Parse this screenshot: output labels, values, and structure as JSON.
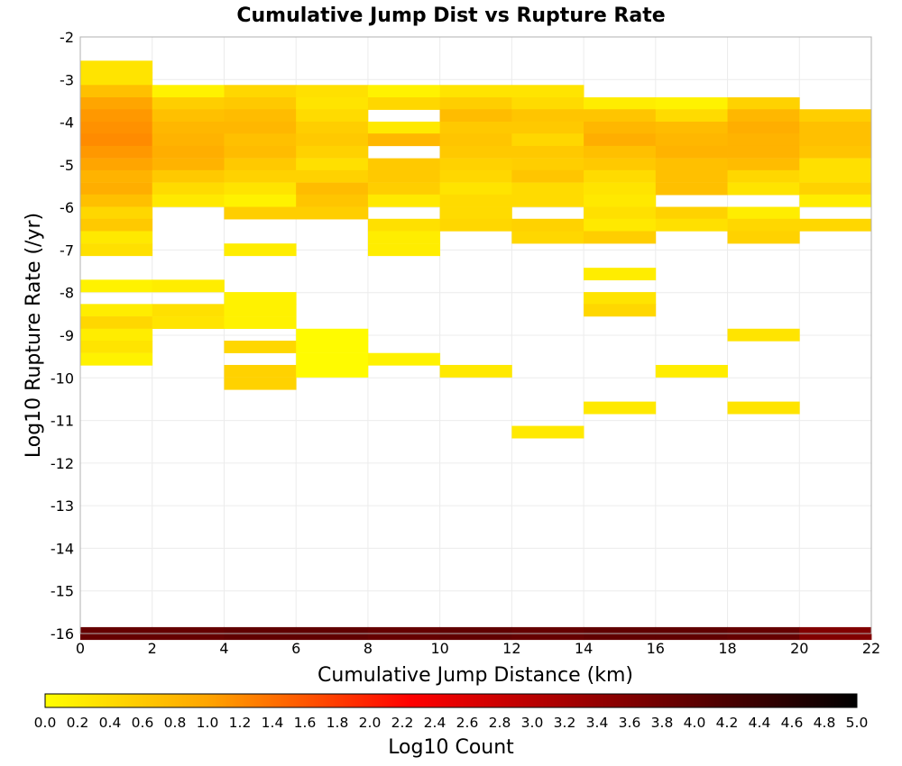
{
  "chart_data": {
    "type": "heatmap",
    "title": "Cumulative Jump Dist vs Rupture Rate",
    "xlabel": "Cumulative Jump Distance (km)",
    "ylabel": "Log10 Rupture Rate (/yr)",
    "xlim": [
      0,
      22
    ],
    "ylim": [
      -16,
      -2
    ],
    "x_ticks": [
      "0",
      "2",
      "4",
      "6",
      "8",
      "10",
      "12",
      "14",
      "16",
      "18",
      "20",
      "22"
    ],
    "y_ticks": [
      "-2",
      "-3",
      "-4",
      "-5",
      "-6",
      "-7",
      "-8",
      "-9",
      "-10",
      "-11",
      "-12",
      "-13",
      "-14",
      "-15",
      "-16"
    ],
    "grid": true,
    "x_bin_width": 2,
    "y_bin_height": 0.286,
    "colorbar": {
      "label": "Log10 Count",
      "range": [
        0.0,
        5.0
      ],
      "ticks": [
        "0.0",
        "0.2",
        "0.4",
        "0.6",
        "0.8",
        "1.0",
        "1.2",
        "1.4",
        "1.6",
        "1.8",
        "2.0",
        "2.2",
        "2.4",
        "2.6",
        "2.8",
        "3.0",
        "3.2",
        "3.4",
        "3.6",
        "3.8",
        "4.0",
        "4.2",
        "4.4",
        "4.6",
        "4.8",
        "5.0"
      ],
      "colors": [
        "#ffff00",
        "#ffa500",
        "#ff0000",
        "#000000"
      ]
    },
    "row_y": [
      -2.7,
      -2.98,
      -3.27,
      -3.56,
      -3.84,
      -4.13,
      -4.41,
      -4.7,
      -4.99,
      -5.27,
      -5.56,
      -5.84,
      -6.13,
      -6.41,
      -6.7,
      -6.99,
      -7.27,
      -7.56,
      -7.84,
      -8.13,
      -8.41,
      -8.7,
      -8.99,
      -9.27,
      -9.56,
      -9.84,
      -10.13,
      -10.41,
      -10.7,
      -10.99,
      -11.27,
      -11.56
    ],
    "columns": [
      {
        "x": 0,
        "cells": [
          [
            0,
            0.3
          ],
          [
            1,
            0.3
          ],
          [
            2,
            0.7
          ],
          [
            3,
            1.0
          ],
          [
            4,
            1.1
          ],
          [
            5,
            1.15
          ],
          [
            6,
            1.2
          ],
          [
            7,
            1.1
          ],
          [
            8,
            1.0
          ],
          [
            9,
            0.85
          ],
          [
            10,
            0.9
          ],
          [
            11,
            0.7
          ],
          [
            12,
            0.45
          ],
          [
            13,
            0.6
          ],
          [
            14,
            0.25
          ],
          [
            15,
            0.35
          ],
          [
            18,
            0.15
          ],
          [
            20,
            0.2
          ],
          [
            21,
            0.45
          ],
          [
            22,
            0.2
          ],
          [
            23,
            0.3
          ],
          [
            24,
            0.15
          ]
        ]
      },
      {
        "x": 2,
        "cells": [
          [
            2,
            0.15
          ],
          [
            3,
            0.55
          ],
          [
            4,
            0.7
          ],
          [
            5,
            0.8
          ],
          [
            6,
            0.85
          ],
          [
            7,
            0.9
          ],
          [
            8,
            0.85
          ],
          [
            9,
            0.6
          ],
          [
            10,
            0.4
          ],
          [
            11,
            0.25
          ],
          [
            18,
            0.2
          ],
          [
            20,
            0.35
          ],
          [
            21,
            0.3
          ]
        ]
      },
      {
        "x": 4,
        "cells": [
          [
            2,
            0.45
          ],
          [
            3,
            0.6
          ],
          [
            4,
            0.75
          ],
          [
            5,
            0.8
          ],
          [
            6,
            0.7
          ],
          [
            7,
            0.75
          ],
          [
            8,
            0.6
          ],
          [
            9,
            0.5
          ],
          [
            10,
            0.3
          ],
          [
            11,
            0.15
          ],
          [
            12,
            0.55
          ],
          [
            15,
            0.2
          ],
          [
            19,
            0.15
          ],
          [
            20,
            0.15
          ],
          [
            21,
            0.15
          ],
          [
            23,
            0.45
          ],
          [
            25,
            0.5
          ],
          [
            26,
            0.5
          ]
        ]
      },
      {
        "x": 6,
        "cells": [
          [
            2,
            0.35
          ],
          [
            3,
            0.3
          ],
          [
            4,
            0.4
          ],
          [
            5,
            0.55
          ],
          [
            6,
            0.6
          ],
          [
            7,
            0.5
          ],
          [
            8,
            0.35
          ],
          [
            9,
            0.5
          ],
          [
            10,
            0.75
          ],
          [
            11,
            0.65
          ],
          [
            12,
            0.55
          ],
          [
            22,
            0.05
          ],
          [
            23,
            0.05
          ],
          [
            24,
            0.05
          ],
          [
            25,
            0.05
          ]
        ]
      },
      {
        "x": 8,
        "cells": [
          [
            2,
            0.15
          ],
          [
            3,
            0.45
          ],
          [
            5,
            0.25
          ],
          [
            6,
            0.8
          ],
          [
            8,
            0.6
          ],
          [
            9,
            0.6
          ],
          [
            10,
            0.55
          ],
          [
            11,
            0.25
          ],
          [
            13,
            0.35
          ],
          [
            14,
            0.2
          ],
          [
            15,
            0.2
          ],
          [
            24,
            0.15
          ]
        ]
      },
      {
        "x": 10,
        "cells": [
          [
            2,
            0.3
          ],
          [
            3,
            0.55
          ],
          [
            4,
            0.75
          ],
          [
            5,
            0.6
          ],
          [
            6,
            0.65
          ],
          [
            7,
            0.6
          ],
          [
            8,
            0.5
          ],
          [
            9,
            0.45
          ],
          [
            10,
            0.3
          ],
          [
            11,
            0.4
          ],
          [
            12,
            0.4
          ],
          [
            13,
            0.45
          ],
          [
            25,
            0.25
          ]
        ]
      },
      {
        "x": 12,
        "cells": [
          [
            2,
            0.3
          ],
          [
            3,
            0.4
          ],
          [
            4,
            0.65
          ],
          [
            5,
            0.6
          ],
          [
            6,
            0.45
          ],
          [
            7,
            0.6
          ],
          [
            8,
            0.55
          ],
          [
            9,
            0.65
          ],
          [
            10,
            0.4
          ],
          [
            11,
            0.4
          ],
          [
            13,
            0.5
          ],
          [
            14,
            0.45
          ],
          [
            30,
            0.25
          ]
        ]
      },
      {
        "x": 14,
        "cells": [
          [
            3,
            0.2
          ],
          [
            4,
            0.65
          ],
          [
            5,
            0.8
          ],
          [
            6,
            0.9
          ],
          [
            7,
            0.7
          ],
          [
            8,
            0.6
          ],
          [
            9,
            0.4
          ],
          [
            10,
            0.3
          ],
          [
            11,
            0.25
          ],
          [
            12,
            0.35
          ],
          [
            13,
            0.25
          ],
          [
            14,
            0.55
          ],
          [
            17,
            0.2
          ],
          [
            19,
            0.3
          ],
          [
            20,
            0.45
          ],
          [
            28,
            0.25
          ]
        ]
      },
      {
        "x": 16,
        "cells": [
          [
            3,
            0.15
          ],
          [
            4,
            0.4
          ],
          [
            5,
            0.75
          ],
          [
            6,
            0.8
          ],
          [
            7,
            0.85
          ],
          [
            8,
            0.7
          ],
          [
            9,
            0.7
          ],
          [
            10,
            0.7
          ],
          [
            12,
            0.5
          ],
          [
            13,
            0.35
          ],
          [
            25,
            0.2
          ]
        ]
      },
      {
        "x": 18,
        "cells": [
          [
            3,
            0.5
          ],
          [
            4,
            0.8
          ],
          [
            5,
            0.9
          ],
          [
            6,
            0.85
          ],
          [
            7,
            0.85
          ],
          [
            8,
            0.75
          ],
          [
            9,
            0.45
          ],
          [
            10,
            0.3
          ],
          [
            12,
            0.2
          ],
          [
            13,
            0.45
          ],
          [
            14,
            0.5
          ],
          [
            22,
            0.3
          ],
          [
            28,
            0.3
          ]
        ]
      },
      {
        "x": 20,
        "cells": [
          [
            4,
            0.55
          ],
          [
            5,
            0.7
          ],
          [
            6,
            0.7
          ],
          [
            7,
            0.65
          ],
          [
            8,
            0.35
          ],
          [
            9,
            0.35
          ],
          [
            10,
            0.5
          ],
          [
            11,
            0.2
          ],
          [
            13,
            0.45
          ]
        ]
      }
    ],
    "bottom_row": {
      "y": -16.0,
      "height": 0.15,
      "values": [
        3.9,
        3.9,
        3.95,
        3.95,
        3.9,
        3.95,
        3.9,
        3.95,
        3.95,
        3.9,
        3.6
      ]
    }
  }
}
